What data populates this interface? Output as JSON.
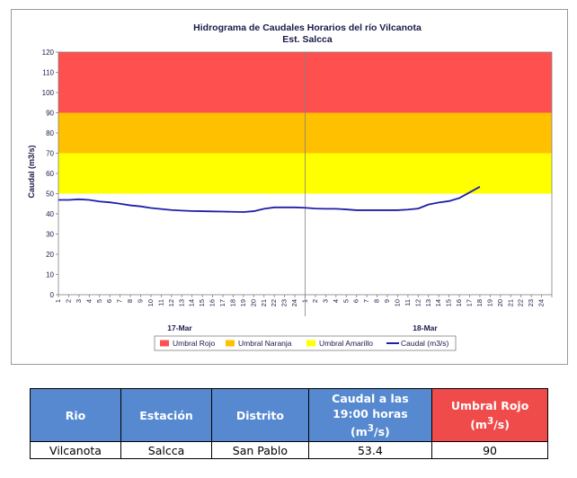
{
  "chart_data": {
    "type": "line",
    "title": "Hidrograma de Caudales Horarios del río Vilcanota",
    "subtitle": "Est. Salcca",
    "ylabel": "Caudal  (m3/s)",
    "ylim": [
      0,
      120
    ],
    "yticks": [
      0,
      10,
      20,
      30,
      40,
      50,
      60,
      70,
      80,
      90,
      100,
      110,
      120
    ],
    "x_tick_labels": [
      "1",
      "2",
      "3",
      "4",
      "5",
      "6",
      "7",
      "8",
      "9",
      "10",
      "11",
      "12",
      "13",
      "14",
      "15",
      "16",
      "17",
      "18",
      "19",
      "20",
      "21",
      "22",
      "23",
      "24",
      "1",
      "2",
      "3",
      "4",
      "5",
      "6",
      "7",
      "8",
      "9",
      "10",
      "11",
      "12",
      "13",
      "14",
      "15",
      "16",
      "17",
      "18",
      "19",
      "20",
      "21",
      "22",
      "23",
      "24"
    ],
    "day_labels": [
      "17-Mar",
      "18-Mar"
    ],
    "thresholds": [
      {
        "name": "Umbral Rojo",
        "from": 90,
        "to": 120,
        "color": "#ff5050"
      },
      {
        "name": "Umbral Naranja",
        "from": 70,
        "to": 90,
        "color": "#ffc000"
      },
      {
        "name": "Umbral Amarillo",
        "from": 50,
        "to": 70,
        "color": "#ffff00"
      }
    ],
    "series": [
      {
        "name": "Caudal (m3/s)",
        "color": "#1f1fa8",
        "values": [
          46.9,
          46.9,
          47.2,
          46.9,
          46.1,
          45.7,
          45.0,
          44.2,
          43.7,
          42.9,
          42.4,
          41.9,
          41.6,
          41.4,
          41.3,
          41.2,
          41.1,
          41.0,
          40.9,
          41.3,
          42.5,
          43.2,
          43.2,
          43.2,
          43.0,
          42.6,
          42.5,
          42.5,
          42.2,
          41.8,
          41.8,
          41.8,
          41.8,
          41.8,
          42.1,
          42.6,
          44.6,
          45.6,
          46.3,
          47.8,
          50.6,
          53.4
        ]
      }
    ],
    "legend": {
      "placement": "bottom",
      "items": [
        {
          "label": "Umbral Rojo",
          "color": "#ff5050",
          "kind": "box"
        },
        {
          "label": "Umbral Naranja",
          "color": "#ffc000",
          "kind": "box"
        },
        {
          "label": "Umbral Amarillo",
          "color": "#ffff00",
          "kind": "box"
        },
        {
          "label": "Caudal (m3/s)",
          "color": "#1f1fa8",
          "kind": "line"
        }
      ]
    },
    "grid": false
  },
  "table": {
    "headers": {
      "rio": "Rio",
      "estacion": "Estación",
      "distrito": "Distrito",
      "caudal_line1": "Caudal a las",
      "caudal_line2": "19:00 horas",
      "caudal_unit_pre": "(m",
      "caudal_unit_sup": "3",
      "caudal_unit_post": "/s)",
      "umbral_line1": "Umbral Rojo",
      "umbral_unit_pre": "(m",
      "umbral_unit_sup": "3",
      "umbral_unit_post": "/s)"
    },
    "row": {
      "rio": "Vilcanota",
      "estacion": "Salcca",
      "distrito": "San Pablo",
      "caudal": "53.4",
      "umbral": "90"
    }
  }
}
